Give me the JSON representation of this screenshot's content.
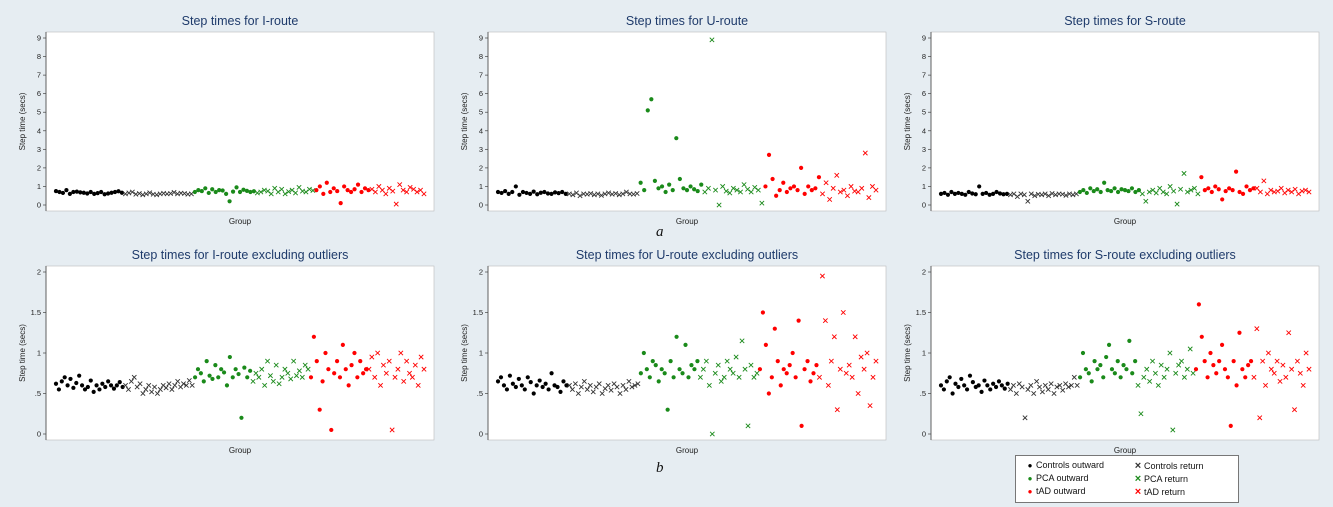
{
  "figure": {
    "sublabel_a": "a",
    "sublabel_b": "b",
    "legend": [
      {
        "label": "Controls outward",
        "marker": "dot",
        "color": "#000000"
      },
      {
        "label": "Controls return",
        "marker": "x",
        "color": "#333333"
      },
      {
        "label": "PCA outward",
        "marker": "dot",
        "color": "#1a8a1a"
      },
      {
        "label": "PCA return",
        "marker": "x",
        "color": "#1a8a1a"
      },
      {
        "label": "tAD outward",
        "marker": "dot",
        "color": "#ff0000"
      },
      {
        "label": "tAD return",
        "marker": "x",
        "color": "#ff0000"
      }
    ]
  },
  "chart_data": [
    {
      "type": "scatter",
      "title": "Step times for I-route",
      "xlabel": "Group",
      "ylabel": "Step time (secs)",
      "ylim": [
        0,
        9
      ],
      "yticks": [
        "0",
        "1",
        "2",
        "3",
        "4",
        "5",
        "6",
        "7",
        "8",
        "9"
      ],
      "ytick_values": [
        0,
        1,
        2,
        3,
        4,
        5,
        6,
        7,
        8,
        9
      ],
      "grid": false,
      "groups": [
        {
          "name": "Controls outward",
          "values": [
            0.75,
            0.7,
            0.65,
            0.8,
            0.6,
            0.7,
            0.72,
            0.68,
            0.66,
            0.62,
            0.7,
            0.6,
            0.64,
            0.7,
            0.58,
            0.62,
            0.66,
            0.7,
            0.74,
            0.66
          ]
        },
        {
          "name": "Controls return",
          "values": [
            0.6,
            0.65,
            0.7,
            0.58,
            0.62,
            0.55,
            0.6,
            0.66,
            0.58,
            0.55,
            0.6,
            0.63,
            0.6,
            0.62,
            0.68,
            0.6,
            0.64,
            0.62,
            0.58,
            0.6
          ]
        },
        {
          "name": "PCA outward",
          "values": [
            0.7,
            0.8,
            0.75,
            0.9,
            0.65,
            0.85,
            0.7,
            0.8,
            0.78,
            0.6,
            0.2,
            0.72,
            0.95,
            0.7,
            0.82,
            0.76,
            0.7,
            0.74
          ]
        },
        {
          "name": "PCA return",
          "values": [
            0.65,
            0.7,
            0.8,
            0.75,
            0.6,
            0.9,
            0.7,
            0.85,
            0.6,
            0.72,
            0.8,
            0.65,
            0.95,
            0.75,
            0.7,
            0.85,
            0.78
          ]
        },
        {
          "name": "tAD outward",
          "values": [
            0.8,
            1.0,
            0.6,
            1.2,
            0.7,
            0.9,
            0.75,
            0.1,
            1.0,
            0.8,
            0.7,
            0.85,
            1.1,
            0.7,
            0.9,
            0.8
          ]
        },
        {
          "name": "tAD return",
          "values": [
            0.85,
            0.7,
            1.0,
            0.8,
            0.6,
            0.9,
            0.75,
            0.05,
            1.1,
            0.8,
            0.7,
            0.95,
            0.85,
            0.7,
            0.8,
            0.6
          ]
        }
      ]
    },
    {
      "type": "scatter",
      "title": "Step times for U-route",
      "xlabel": "Group",
      "ylabel": "Step time (secs)",
      "ylim": [
        0,
        9
      ],
      "yticks": [
        "0",
        "1",
        "2",
        "3",
        "4",
        "5",
        "6",
        "7",
        "8",
        "9"
      ],
      "ytick_values": [
        0,
        1,
        2,
        3,
        4,
        5,
        6,
        7,
        8,
        9
      ],
      "grid": false,
      "groups": [
        {
          "name": "Controls outward",
          "values": [
            0.7,
            0.65,
            0.75,
            0.6,
            0.7,
            1.0,
            0.55,
            0.7,
            0.65,
            0.6,
            0.72,
            0.58,
            0.66,
            0.7,
            0.62,
            0.6,
            0.68,
            0.64,
            0.7,
            0.6
          ]
        },
        {
          "name": "Controls return",
          "values": [
            0.6,
            0.55,
            0.65,
            0.5,
            0.6,
            0.58,
            0.62,
            0.55,
            0.6,
            0.52,
            0.6,
            0.65,
            0.58,
            0.62,
            0.55,
            0.6,
            0.7,
            0.6,
            0.58,
            0.62
          ]
        },
        {
          "name": "PCA outward",
          "values": [
            1.2,
            0.8,
            5.1,
            5.7,
            1.3,
            0.9,
            1.0,
            0.7,
            1.1,
            0.8,
            3.6,
            1.4,
            0.9,
            0.8,
            1.0,
            0.85,
            0.75,
            1.1
          ]
        },
        {
          "name": "PCA return",
          "values": [
            0.7,
            0.9,
            8.9,
            0.8,
            0.0,
            1.0,
            0.75,
            0.65,
            0.9,
            0.8,
            0.7,
            1.1,
            0.85,
            0.7,
            0.95,
            0.8,
            0.1
          ]
        },
        {
          "name": "tAD outward",
          "values": [
            1.0,
            2.7,
            1.4,
            0.5,
            0.8,
            1.2,
            0.7,
            0.9,
            1.0,
            0.8,
            2.0,
            0.6,
            1.0,
            0.8,
            0.9,
            1.5
          ]
        },
        {
          "name": "tAD return",
          "values": [
            0.6,
            1.2,
            0.3,
            0.9,
            1.6,
            0.7,
            0.8,
            0.5,
            1.0,
            0.75,
            0.7,
            0.9,
            2.8,
            0.4,
            1.0,
            0.8
          ]
        }
      ]
    },
    {
      "type": "scatter",
      "title": "Step times for S-route",
      "xlabel": "Group",
      "ylabel": "Step time (secs)",
      "ylim": [
        0,
        9
      ],
      "yticks": [
        "0",
        "1",
        "2",
        "3",
        "4",
        "5",
        "6",
        "7",
        "8",
        "9"
      ],
      "ytick_values": [
        0,
        1,
        2,
        3,
        4,
        5,
        6,
        7,
        8,
        9
      ],
      "grid": false,
      "groups": [
        {
          "name": "Controls outward",
          "values": [
            0.6,
            0.65,
            0.55,
            0.7,
            0.6,
            0.65,
            0.6,
            0.55,
            0.7,
            0.62,
            0.58,
            1.0,
            0.6,
            0.65,
            0.55,
            0.6,
            0.7,
            0.62,
            0.58,
            0.6
          ]
        },
        {
          "name": "Controls return",
          "values": [
            0.55,
            0.6,
            0.45,
            0.6,
            0.55,
            0.2,
            0.6,
            0.5,
            0.58,
            0.55,
            0.6,
            0.5,
            0.62,
            0.55,
            0.6,
            0.58,
            0.52,
            0.6,
            0.55,
            0.6
          ]
        },
        {
          "name": "PCA outward",
          "values": [
            0.7,
            0.8,
            0.65,
            0.9,
            0.75,
            0.85,
            0.7,
            1.2,
            0.8,
            0.75,
            0.9,
            0.7,
            0.85,
            0.8,
            0.75,
            0.9,
            0.7,
            0.8
          ]
        },
        {
          "name": "PCA return",
          "values": [
            0.6,
            0.2,
            0.7,
            0.8,
            0.65,
            0.9,
            0.7,
            0.6,
            1.0,
            0.75,
            0.05,
            0.85,
            1.7,
            0.7,
            0.8,
            0.9,
            0.6
          ]
        },
        {
          "name": "tAD outward",
          "values": [
            1.5,
            0.8,
            0.9,
            0.7,
            1.0,
            0.85,
            0.3,
            0.75,
            0.9,
            0.8,
            1.8,
            0.7,
            0.6,
            1.0,
            0.8,
            0.9
          ]
        },
        {
          "name": "tAD return",
          "values": [
            0.9,
            0.7,
            1.3,
            0.6,
            0.8,
            0.7,
            0.75,
            0.9,
            0.65,
            0.8,
            0.7,
            0.85,
            0.6,
            0.75,
            0.8,
            0.7
          ]
        }
      ]
    },
    {
      "type": "scatter",
      "title": "Step times for I-route excluding outliers",
      "xlabel": "Group",
      "ylabel": "Step time (secs)",
      "ylim": [
        0,
        2
      ],
      "yticks": [
        "0",
        ".5",
        "1",
        "1.5",
        "2"
      ],
      "ytick_values": [
        0,
        0.5,
        1,
        1.5,
        2
      ],
      "grid": false,
      "groups": [
        {
          "name": "Controls outward",
          "values": [
            0.62,
            0.55,
            0.65,
            0.7,
            0.6,
            0.68,
            0.57,
            0.63,
            0.72,
            0.6,
            0.55,
            0.58,
            0.66,
            0.52,
            0.6,
            0.55,
            0.62,
            0.58,
            0.65,
            0.6,
            0.56,
            0.6,
            0.64,
            0.58
          ]
        },
        {
          "name": "Controls return",
          "values": [
            0.6,
            0.55,
            0.65,
            0.7,
            0.58,
            0.62,
            0.5,
            0.55,
            0.6,
            0.52,
            0.58,
            0.5,
            0.55,
            0.6,
            0.57,
            0.62,
            0.55,
            0.6,
            0.65,
            0.58,
            0.62,
            0.6,
            0.66,
            0.6
          ]
        },
        {
          "name": "PCA outward",
          "values": [
            0.7,
            0.8,
            0.75,
            0.65,
            0.9,
            0.72,
            0.68,
            0.85,
            0.7,
            0.8,
            0.76,
            0.6,
            0.95,
            0.7,
            0.8,
            0.74,
            0.2,
            0.82,
            0.7,
            0.78
          ]
        },
        {
          "name": "PCA return",
          "values": [
            0.65,
            0.75,
            0.7,
            0.8,
            0.6,
            0.9,
            0.72,
            0.65,
            0.85,
            0.62,
            0.7,
            0.8,
            0.75,
            0.68,
            0.9,
            0.72,
            0.78,
            0.7,
            0.85,
            0.8
          ]
        },
        {
          "name": "tAD outward",
          "values": [
            0.7,
            1.2,
            0.9,
            0.3,
            0.65,
            1.0,
            0.8,
            0.05,
            0.75,
            0.9,
            0.7,
            1.1,
            0.8,
            0.6,
            0.85,
            1.0,
            0.7,
            0.9,
            0.75,
            0.8
          ]
        },
        {
          "name": "tAD return",
          "values": [
            0.8,
            0.95,
            0.7,
            1.0,
            0.6,
            0.85,
            0.75,
            0.9,
            0.05,
            0.7,
            0.8,
            1.0,
            0.65,
            0.9,
            0.75,
            0.7,
            0.85,
            0.6,
            0.95,
            0.8
          ]
        }
      ]
    },
    {
      "type": "scatter",
      "title": "Step times for U-route excluding outliers",
      "xlabel": "Group",
      "ylabel": "Step time (secs)",
      "ylim": [
        0,
        2
      ],
      "yticks": [
        "0",
        ".5",
        "1",
        "1.5",
        "2"
      ],
      "ytick_values": [
        0,
        0.5,
        1,
        1.5,
        2
      ],
      "grid": false,
      "groups": [
        {
          "name": "Controls outward",
          "values": [
            0.65,
            0.7,
            0.6,
            0.55,
            0.72,
            0.62,
            0.58,
            0.68,
            0.6,
            0.55,
            0.7,
            0.64,
            0.5,
            0.6,
            0.66,
            0.58,
            0.62,
            0.55,
            0.75,
            0.6,
            0.58,
            0.52,
            0.65,
            0.6
          ]
        },
        {
          "name": "Controls return",
          "values": [
            0.6,
            0.55,
            0.62,
            0.5,
            0.58,
            0.65,
            0.55,
            0.6,
            0.52,
            0.58,
            0.62,
            0.5,
            0.56,
            0.6,
            0.54,
            0.62,
            0.58,
            0.5,
            0.6,
            0.55,
            0.65,
            0.58,
            0.6,
            0.62
          ]
        },
        {
          "name": "PCA outward",
          "values": [
            0.75,
            1.0,
            0.8,
            0.7,
            0.9,
            0.85,
            0.65,
            0.8,
            0.75,
            0.3,
            0.9,
            0.7,
            1.2,
            0.8,
            0.75,
            1.1,
            0.7,
            0.85,
            0.8,
            0.9
          ]
        },
        {
          "name": "PCA return",
          "values": [
            0.7,
            0.8,
            0.9,
            0.6,
            0.0,
            0.75,
            0.85,
            0.65,
            0.7,
            0.9,
            0.8,
            0.75,
            0.95,
            0.7,
            1.15,
            0.8,
            0.1,
            0.85,
            0.7,
            0.75
          ]
        },
        {
          "name": "tAD outward",
          "values": [
            0.8,
            1.5,
            1.1,
            0.5,
            0.7,
            1.3,
            0.9,
            0.6,
            0.8,
            0.75,
            0.85,
            1.0,
            0.7,
            1.4,
            0.1,
            0.8,
            0.9,
            0.65,
            0.75,
            0.85
          ]
        },
        {
          "name": "tAD return",
          "values": [
            0.7,
            1.95,
            1.4,
            0.6,
            0.9,
            1.2,
            0.3,
            0.8,
            1.5,
            0.75,
            0.85,
            0.7,
            1.2,
            0.5,
            0.95,
            0.8,
            1.0,
            0.35,
            0.7,
            0.9
          ]
        }
      ]
    },
    {
      "type": "scatter",
      "title": "Step times for S-route excluding outliers",
      "xlabel": "Group",
      "ylabel": "Step time (secs)",
      "ylim": [
        0,
        2
      ],
      "yticks": [
        "0",
        ".5",
        "1",
        "1.5",
        "2"
      ],
      "ytick_values": [
        0,
        0.5,
        1,
        1.5,
        2
      ],
      "grid": false,
      "groups": [
        {
          "name": "Controls outward",
          "values": [
            0.6,
            0.55,
            0.65,
            0.7,
            0.5,
            0.62,
            0.58,
            0.68,
            0.6,
            0.55,
            0.72,
            0.64,
            0.58,
            0.6,
            0.52,
            0.66,
            0.6,
            0.55,
            0.62,
            0.58,
            0.65,
            0.6,
            0.56,
            0.62
          ]
        },
        {
          "name": "Controls return",
          "values": [
            0.55,
            0.6,
            0.5,
            0.62,
            0.58,
            0.2,
            0.55,
            0.6,
            0.5,
            0.65,
            0.58,
            0.52,
            0.6,
            0.55,
            0.62,
            0.5,
            0.58,
            0.6,
            0.54,
            0.62,
            0.58,
            0.6,
            0.7,
            0.6
          ]
        },
        {
          "name": "PCA outward",
          "values": [
            0.7,
            1.0,
            0.8,
            0.75,
            0.65,
            0.9,
            0.8,
            0.85,
            0.7,
            0.95,
            1.1,
            0.8,
            0.75,
            0.9,
            0.7,
            0.85,
            0.8,
            1.15,
            0.75,
            0.9
          ]
        },
        {
          "name": "PCA return",
          "values": [
            0.6,
            0.25,
            0.7,
            0.8,
            0.65,
            0.9,
            0.75,
            0.6,
            0.85,
            0.7,
            0.8,
            1.0,
            0.05,
            0.75,
            0.85,
            0.9,
            0.7,
            0.8,
            1.05,
            0.75
          ]
        },
        {
          "name": "tAD outward",
          "values": [
            0.8,
            1.6,
            1.2,
            0.9,
            0.7,
            1.0,
            0.85,
            0.75,
            0.9,
            1.1,
            0.8,
            0.7,
            0.1,
            0.9,
            0.6,
            1.25,
            0.8,
            0.7,
            0.85,
            0.9
          ]
        },
        {
          "name": "tAD return",
          "values": [
            0.7,
            1.3,
            0.2,
            0.9,
            0.6,
            1.0,
            0.8,
            0.75,
            0.9,
            0.65,
            0.85,
            0.7,
            1.25,
            0.8,
            0.3,
            0.9,
            0.75,
            0.6,
            1.0,
            0.8
          ]
        }
      ]
    }
  ]
}
